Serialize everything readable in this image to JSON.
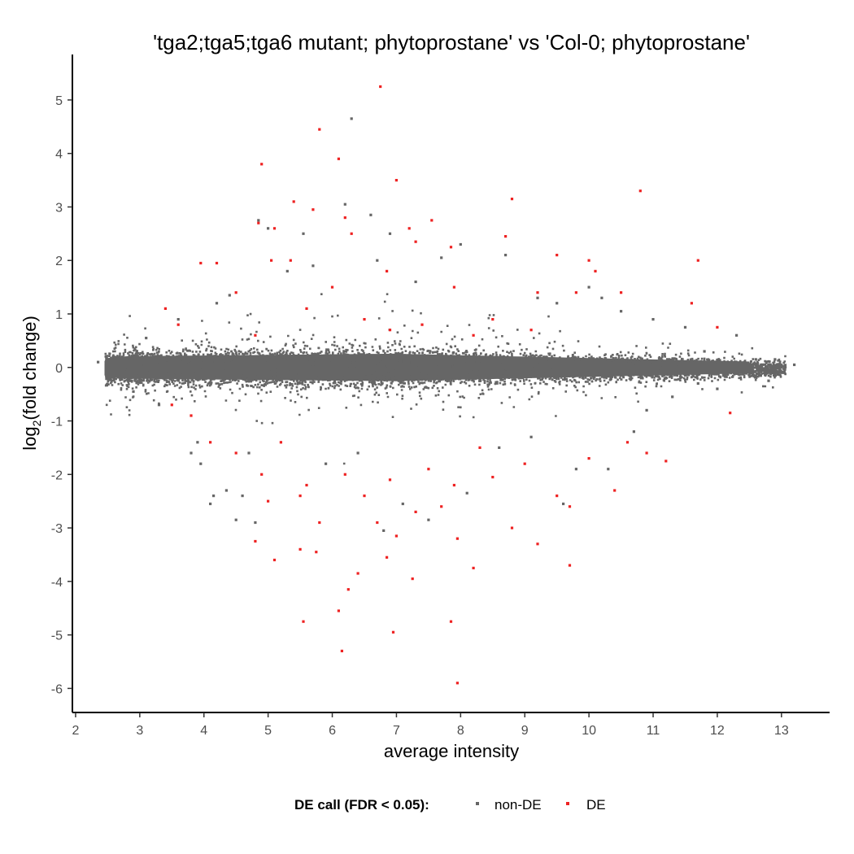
{
  "chart_data": {
    "type": "scatter",
    "title": "'tga2;tga5;tga6 mutant; phytoprostane' vs 'Col-0; phytoprostane'",
    "xlabel": "average intensity",
    "ylabel": {
      "prefix": "log",
      "subscript": "2",
      "suffix": "(fold change)"
    },
    "xlim": [
      1.95,
      13.75
    ],
    "ylim": [
      -6.45,
      5.85
    ],
    "x_ticks": [
      "2",
      "3",
      "4",
      "5",
      "6",
      "7",
      "8",
      "9",
      "10",
      "11",
      "12",
      "13"
    ],
    "y_ticks": [
      "5",
      "4",
      "3",
      "2",
      "1",
      "0",
      "-1",
      "-2",
      "-3",
      "-4",
      "-5",
      "-6"
    ],
    "legend": {
      "title": "DE call (FDR < 0.05):",
      "position": "bottom",
      "items": [
        {
          "label": "non-DE",
          "color": "#666666"
        },
        {
          "label": "DE",
          "color": "#ee2222"
        }
      ]
    },
    "series": [
      {
        "name": "non-DE",
        "color": "#666666",
        "points": [
          [
            2.35,
            0.1
          ],
          [
            2.5,
            0.15
          ],
          [
            2.6,
            -0.2
          ],
          [
            3.8,
            -1.6
          ],
          [
            3.95,
            -1.8
          ],
          [
            4.1,
            -2.55
          ],
          [
            4.15,
            -2.4
          ],
          [
            4.35,
            -2.3
          ],
          [
            4.5,
            -2.85
          ],
          [
            4.6,
            -2.4
          ],
          [
            4.8,
            -2.9
          ],
          [
            4.85,
            2.75
          ],
          [
            5.0,
            2.6
          ],
          [
            5.55,
            2.5
          ],
          [
            6.2,
            3.05
          ],
          [
            6.3,
            4.65
          ],
          [
            6.6,
            2.85
          ],
          [
            6.9,
            2.5
          ],
          [
            7.7,
            2.05
          ],
          [
            8.0,
            2.3
          ],
          [
            8.7,
            2.1
          ],
          [
            7.1,
            -2.55
          ],
          [
            6.8,
            -3.05
          ],
          [
            7.5,
            -2.85
          ],
          [
            8.1,
            -2.35
          ],
          [
            9.6,
            -2.55
          ],
          [
            9.8,
            -1.9
          ],
          [
            10.3,
            -1.9
          ],
          [
            10.7,
            -1.2
          ],
          [
            11.8,
            0.3
          ],
          [
            12.3,
            0.6
          ],
          [
            12.6,
            0.15
          ],
          [
            13.2,
            0.05
          ],
          [
            12.9,
            0.15
          ],
          [
            10.0,
            1.5
          ],
          [
            10.2,
            1.3
          ],
          [
            10.5,
            1.05
          ],
          [
            5.3,
            1.8
          ],
          [
            5.7,
            1.9
          ],
          [
            6.7,
            2.0
          ],
          [
            7.3,
            1.6
          ],
          [
            4.4,
            1.35
          ],
          [
            4.2,
            1.2
          ],
          [
            3.6,
            0.9
          ],
          [
            9.2,
            1.3
          ],
          [
            9.5,
            1.2
          ],
          [
            11.0,
            0.9
          ],
          [
            11.5,
            0.75
          ],
          [
            3.9,
            -1.4
          ],
          [
            4.7,
            -1.6
          ],
          [
            5.9,
            -1.8
          ],
          [
            6.4,
            -1.6
          ],
          [
            8.6,
            -1.5
          ],
          [
            9.1,
            -1.3
          ],
          [
            11.3,
            -0.55
          ],
          [
            12.0,
            -0.4
          ],
          [
            12.8,
            -0.25
          ],
          [
            2.9,
            -0.45
          ],
          [
            3.1,
            0.55
          ],
          [
            3.3,
            -0.7
          ],
          [
            10.9,
            -0.8
          ],
          [
            11.7,
            -0.3
          ]
        ]
      },
      {
        "name": "DE",
        "color": "#ee2222",
        "points": [
          [
            6.75,
            5.25
          ],
          [
            5.8,
            4.45
          ],
          [
            6.1,
            3.9
          ],
          [
            4.9,
            3.8
          ],
          [
            7.0,
            3.5
          ],
          [
            10.8,
            3.3
          ],
          [
            8.8,
            3.15
          ],
          [
            5.4,
            3.1
          ],
          [
            5.7,
            2.95
          ],
          [
            6.2,
            2.8
          ],
          [
            4.85,
            2.7
          ],
          [
            5.1,
            2.6
          ],
          [
            7.2,
            2.6
          ],
          [
            7.55,
            2.75
          ],
          [
            8.7,
            2.45
          ],
          [
            7.85,
            2.25
          ],
          [
            7.3,
            2.35
          ],
          [
            6.3,
            2.5
          ],
          [
            3.95,
            1.95
          ],
          [
            4.2,
            1.95
          ],
          [
            5.35,
            2.0
          ],
          [
            5.05,
            2.0
          ],
          [
            6.85,
            1.8
          ],
          [
            9.5,
            2.1
          ],
          [
            10.0,
            2.0
          ],
          [
            10.1,
            1.8
          ],
          [
            11.7,
            2.0
          ],
          [
            4.5,
            1.4
          ],
          [
            6.0,
            1.5
          ],
          [
            7.9,
            1.5
          ],
          [
            9.2,
            1.4
          ],
          [
            9.8,
            1.4
          ],
          [
            11.6,
            1.2
          ],
          [
            3.4,
            1.1
          ],
          [
            3.6,
            0.8
          ],
          [
            5.6,
            1.1
          ],
          [
            6.5,
            0.9
          ],
          [
            7.4,
            0.8
          ],
          [
            8.5,
            0.9
          ],
          [
            9.1,
            0.7
          ],
          [
            10.5,
            1.4
          ],
          [
            12.0,
            0.75
          ],
          [
            4.8,
            0.6
          ],
          [
            6.9,
            0.7
          ],
          [
            8.2,
            0.6
          ],
          [
            3.5,
            -0.7
          ],
          [
            3.8,
            -0.9
          ],
          [
            4.1,
            -1.4
          ],
          [
            4.5,
            -1.6
          ],
          [
            4.9,
            -2.0
          ],
          [
            5.2,
            -1.4
          ],
          [
            5.5,
            -2.4
          ],
          [
            5.6,
            -2.2
          ],
          [
            5.8,
            -2.9
          ],
          [
            6.2,
            -2.0
          ],
          [
            6.5,
            -2.4
          ],
          [
            6.9,
            -2.1
          ],
          [
            7.3,
            -2.7
          ],
          [
            7.5,
            -1.9
          ],
          [
            7.7,
            -2.6
          ],
          [
            7.9,
            -2.2
          ],
          [
            8.3,
            -1.5
          ],
          [
            8.8,
            -3.0
          ],
          [
            9.2,
            -3.3
          ],
          [
            9.5,
            -2.4
          ],
          [
            9.7,
            -2.6
          ],
          [
            9.7,
            -3.7
          ],
          [
            10.4,
            -2.3
          ],
          [
            10.6,
            -1.4
          ],
          [
            10.9,
            -1.6
          ],
          [
            11.2,
            -1.75
          ],
          [
            12.2,
            -0.85
          ],
          [
            5.1,
            -3.6
          ],
          [
            5.5,
            -3.4
          ],
          [
            5.75,
            -3.45
          ],
          [
            6.25,
            -4.15
          ],
          [
            6.4,
            -3.85
          ],
          [
            6.85,
            -3.55
          ],
          [
            7.25,
            -3.95
          ],
          [
            7.95,
            -3.2
          ],
          [
            8.2,
            -3.75
          ],
          [
            5.55,
            -4.75
          ],
          [
            6.1,
            -4.55
          ],
          [
            6.95,
            -4.95
          ],
          [
            7.85,
            -4.75
          ],
          [
            6.15,
            -5.3
          ],
          [
            7.95,
            -5.9
          ],
          [
            4.8,
            -3.25
          ],
          [
            5.0,
            -2.5
          ],
          [
            6.7,
            -2.9
          ],
          [
            7.0,
            -3.15
          ],
          [
            8.5,
            -2.05
          ],
          [
            9.0,
            -1.8
          ],
          [
            10.0,
            -1.7
          ]
        ]
      }
    ]
  }
}
